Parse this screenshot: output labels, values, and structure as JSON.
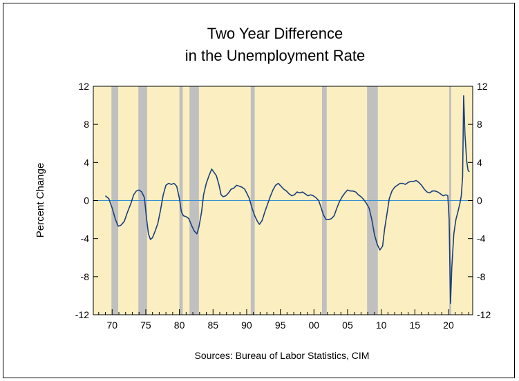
{
  "chart_data": {
    "type": "line",
    "title": [
      "Two Year Difference",
      "in the Unemployment Rate"
    ],
    "ylabel": "Percent Change",
    "source": "Sources: Bureau of Labor Statistics, CIM",
    "ylim": [
      -12,
      12
    ],
    "xlim": [
      1967.2,
      2023.6
    ],
    "yticks": [
      {
        "value": 12,
        "label": "12"
      },
      {
        "value": 8,
        "label": "8"
      },
      {
        "value": 4,
        "label": "4"
      },
      {
        "value": 0,
        "label": "0"
      },
      {
        "value": -4,
        "label": "-4"
      },
      {
        "value": -8,
        "label": "-8"
      },
      {
        "value": -12,
        "label": "-12"
      }
    ],
    "xticks": [
      {
        "year": 1970,
        "label": "70"
      },
      {
        "year": 1975,
        "label": "75"
      },
      {
        "year": 1980,
        "label": "80"
      },
      {
        "year": 1985,
        "label": "85"
      },
      {
        "year": 1990,
        "label": "90"
      },
      {
        "year": 1995,
        "label": "95"
      },
      {
        "year": 2000,
        "label": "00"
      },
      {
        "year": 2005,
        "label": "05"
      },
      {
        "year": 2010,
        "label": "10"
      },
      {
        "year": 2015,
        "label": "15"
      },
      {
        "year": 2020,
        "label": "20"
      }
    ],
    "recessions": [
      [
        1969.9,
        1970.9
      ],
      [
        1973.9,
        1975.2
      ],
      [
        1980.0,
        1980.5
      ],
      [
        1981.5,
        1982.9
      ],
      [
        1990.6,
        1991.2
      ],
      [
        2001.2,
        2001.9
      ],
      [
        2007.9,
        2009.5
      ],
      [
        2020.1,
        2020.4
      ]
    ],
    "series": [
      {
        "values": [
          [
            1969.0,
            0.5
          ],
          [
            1969.5,
            0.2
          ],
          [
            1970.0,
            -0.8
          ],
          [
            1970.5,
            -2.0
          ],
          [
            1970.9,
            -2.7
          ],
          [
            1971.3,
            -2.6
          ],
          [
            1971.8,
            -2.2
          ],
          [
            1972.3,
            -1.2
          ],
          [
            1972.8,
            -0.3
          ],
          [
            1973.2,
            0.6
          ],
          [
            1973.6,
            1.0
          ],
          [
            1974.0,
            1.1
          ],
          [
            1974.4,
            0.9
          ],
          [
            1974.8,
            0.3
          ],
          [
            1975.1,
            -1.8
          ],
          [
            1975.4,
            -3.5
          ],
          [
            1975.7,
            -4.1
          ],
          [
            1976.0,
            -3.9
          ],
          [
            1976.4,
            -3.2
          ],
          [
            1976.8,
            -2.4
          ],
          [
            1977.2,
            -1.0
          ],
          [
            1977.6,
            0.6
          ],
          [
            1978.0,
            1.6
          ],
          [
            1978.4,
            1.8
          ],
          [
            1978.8,
            1.7
          ],
          [
            1979.2,
            1.8
          ],
          [
            1979.6,
            1.5
          ],
          [
            1980.0,
            0.2
          ],
          [
            1980.3,
            -1.2
          ],
          [
            1980.6,
            -1.6
          ],
          [
            1981.0,
            -1.7
          ],
          [
            1981.4,
            -1.9
          ],
          [
            1981.8,
            -2.6
          ],
          [
            1982.2,
            -3.2
          ],
          [
            1982.6,
            -3.5
          ],
          [
            1982.9,
            -2.8
          ],
          [
            1983.3,
            -1.2
          ],
          [
            1983.6,
            0.6
          ],
          [
            1984.0,
            1.8
          ],
          [
            1984.4,
            2.6
          ],
          [
            1984.8,
            3.3
          ],
          [
            1985.1,
            3.0
          ],
          [
            1985.5,
            2.6
          ],
          [
            1985.9,
            1.6
          ],
          [
            1986.2,
            0.6
          ],
          [
            1986.5,
            0.4
          ],
          [
            1986.9,
            0.5
          ],
          [
            1987.3,
            0.8
          ],
          [
            1987.7,
            1.2
          ],
          [
            1988.1,
            1.3
          ],
          [
            1988.5,
            1.6
          ],
          [
            1988.9,
            1.5
          ],
          [
            1989.3,
            1.4
          ],
          [
            1989.7,
            1.2
          ],
          [
            1990.0,
            0.8
          ],
          [
            1990.4,
            0.2
          ],
          [
            1990.8,
            -0.8
          ],
          [
            1991.2,
            -1.6
          ],
          [
            1991.6,
            -2.2
          ],
          [
            1991.9,
            -2.5
          ],
          [
            1992.3,
            -2.1
          ],
          [
            1992.7,
            -1.2
          ],
          [
            1993.1,
            -0.4
          ],
          [
            1993.5,
            0.4
          ],
          [
            1993.9,
            1.1
          ],
          [
            1994.3,
            1.6
          ],
          [
            1994.7,
            1.8
          ],
          [
            1995.1,
            1.5
          ],
          [
            1995.5,
            1.2
          ],
          [
            1995.9,
            1.0
          ],
          [
            1996.3,
            0.7
          ],
          [
            1996.7,
            0.5
          ],
          [
            1997.1,
            0.6
          ],
          [
            1997.5,
            0.9
          ],
          [
            1997.9,
            0.8
          ],
          [
            1998.3,
            0.9
          ],
          [
            1998.7,
            0.7
          ],
          [
            1999.1,
            0.5
          ],
          [
            1999.5,
            0.6
          ],
          [
            1999.9,
            0.5
          ],
          [
            2000.3,
            0.3
          ],
          [
            2000.7,
            0.0
          ],
          [
            2001.0,
            -0.6
          ],
          [
            2001.4,
            -1.5
          ],
          [
            2001.8,
            -2.0
          ],
          [
            2002.2,
            -2.0
          ],
          [
            2002.6,
            -1.9
          ],
          [
            2003.0,
            -1.6
          ],
          [
            2003.4,
            -0.8
          ],
          [
            2003.8,
            -0.1
          ],
          [
            2004.2,
            0.4
          ],
          [
            2004.6,
            0.8
          ],
          [
            2005.0,
            1.1
          ],
          [
            2005.4,
            1.0
          ],
          [
            2005.8,
            1.0
          ],
          [
            2006.2,
            0.9
          ],
          [
            2006.6,
            0.6
          ],
          [
            2007.0,
            0.4
          ],
          [
            2007.4,
            0.1
          ],
          [
            2007.8,
            -0.3
          ],
          [
            2008.2,
            -0.8
          ],
          [
            2008.6,
            -2.0
          ],
          [
            2009.0,
            -3.6
          ],
          [
            2009.4,
            -4.6
          ],
          [
            2009.8,
            -5.2
          ],
          [
            2010.2,
            -4.8
          ],
          [
            2010.5,
            -3.0
          ],
          [
            2010.9,
            -1.2
          ],
          [
            2011.2,
            0.2
          ],
          [
            2011.6,
            1.0
          ],
          [
            2012.0,
            1.4
          ],
          [
            2012.4,
            1.6
          ],
          [
            2012.8,
            1.8
          ],
          [
            2013.2,
            1.8
          ],
          [
            2013.6,
            1.7
          ],
          [
            2014.0,
            1.9
          ],
          [
            2014.4,
            2.0
          ],
          [
            2014.8,
            2.0
          ],
          [
            2015.2,
            2.1
          ],
          [
            2015.6,
            1.9
          ],
          [
            2016.0,
            1.6
          ],
          [
            2016.4,
            1.2
          ],
          [
            2016.8,
            0.9
          ],
          [
            2017.2,
            0.8
          ],
          [
            2017.6,
            1.0
          ],
          [
            2018.0,
            1.0
          ],
          [
            2018.4,
            0.9
          ],
          [
            2018.8,
            0.7
          ],
          [
            2019.2,
            0.5
          ],
          [
            2019.6,
            0.6
          ],
          [
            2019.9,
            0.5
          ],
          [
            2020.1,
            -2.0
          ],
          [
            2020.3,
            -10.8
          ],
          [
            2020.5,
            -7.0
          ],
          [
            2020.8,
            -3.5
          ],
          [
            2021.1,
            -2.0
          ],
          [
            2021.4,
            -1.2
          ],
          [
            2021.7,
            -0.3
          ],
          [
            2021.9,
            0.5
          ],
          [
            2022.1,
            2.5
          ],
          [
            2022.25,
            11.0
          ],
          [
            2022.45,
            7.0
          ],
          [
            2022.7,
            4.2
          ],
          [
            2022.9,
            3.2
          ],
          [
            2023.1,
            3.0
          ]
        ]
      }
    ]
  }
}
